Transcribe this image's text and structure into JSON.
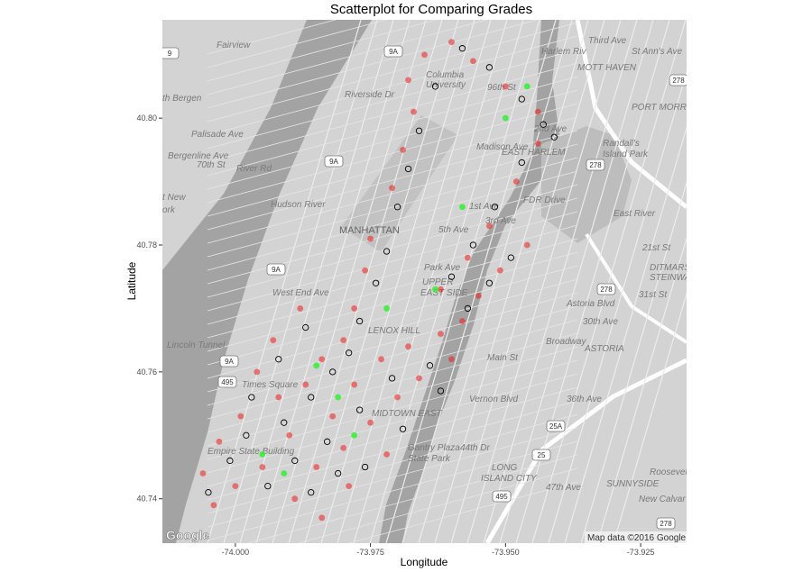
{
  "chart_data": {
    "type": "scatter",
    "title": "Scatterplot for Comparing Grades",
    "xlabel": "Longitude",
    "ylabel": "Latitude",
    "xlim": [
      -74.0135,
      -73.9165
    ],
    "ylim": [
      40.733,
      40.8155
    ],
    "x_ticks": [
      -74.0,
      -73.975,
      -73.95,
      -73.925
    ],
    "x_tick_labels": [
      "-74.000",
      "-73.975",
      "-73.950",
      "-73.925"
    ],
    "y_ticks": [
      40.74,
      40.76,
      40.78,
      40.8
    ],
    "y_tick_labels": [
      "40.74",
      "40.76",
      "40.78",
      "40.80"
    ],
    "grid": false,
    "legend": "none",
    "background": "Google roadmap (greyscale) of Manhattan",
    "series": [
      {
        "marker": "red-filled",
        "color": "#ee1c1c",
        "points": [
          [
            -73.992,
            40.756
          ],
          [
            -73.987,
            40.758
          ],
          [
            -73.984,
            40.762
          ],
          [
            -73.98,
            40.765
          ],
          [
            -73.978,
            40.77
          ],
          [
            -73.976,
            40.776
          ],
          [
            -73.975,
            40.781
          ],
          [
            -73.971,
            40.789
          ],
          [
            -73.969,
            40.795
          ],
          [
            -73.967,
            40.801
          ],
          [
            -73.962,
            40.773
          ],
          [
            -73.957,
            40.778
          ],
          [
            -73.953,
            40.783
          ],
          [
            -73.948,
            40.79
          ],
          [
            -73.944,
            40.796
          ],
          [
            -73.99,
            40.75
          ],
          [
            -73.995,
            40.745
          ],
          [
            -74.0,
            40.742
          ],
          [
            -74.004,
            40.739
          ],
          [
            -73.982,
            40.753
          ],
          [
            -73.978,
            40.758
          ],
          [
            -73.973,
            40.762
          ],
          [
            -73.968,
            40.764
          ],
          [
            -73.962,
            40.766
          ],
          [
            -73.985,
            40.745
          ],
          [
            -73.98,
            40.748
          ],
          [
            -73.975,
            40.752
          ],
          [
            -73.996,
            40.76
          ],
          [
            -73.993,
            40.765
          ],
          [
            -73.988,
            40.77
          ],
          [
            -73.958,
            40.768
          ],
          [
            -73.955,
            40.772
          ],
          [
            -73.951,
            40.776
          ],
          [
            -73.946,
            40.78
          ],
          [
            -73.968,
            40.806
          ],
          [
            -73.965,
            40.81
          ],
          [
            -73.96,
            40.812
          ],
          [
            -73.956,
            40.809
          ],
          [
            -73.95,
            40.805
          ],
          [
            -73.944,
            40.801
          ],
          [
            -74.006,
            40.744
          ],
          [
            -74.003,
            40.749
          ],
          [
            -73.999,
            40.753
          ],
          [
            -73.989,
            40.74
          ],
          [
            -73.984,
            40.737
          ],
          [
            -73.979,
            40.742
          ],
          [
            -73.972,
            40.747
          ],
          [
            -73.97,
            40.756
          ],
          [
            -73.966,
            40.759
          ],
          [
            -73.96,
            40.762
          ]
        ]
      },
      {
        "marker": "black-open-circle",
        "color": "#000000",
        "points": [
          [
            -73.991,
            40.752
          ],
          [
            -73.986,
            40.756
          ],
          [
            -73.982,
            40.76
          ],
          [
            -73.979,
            40.763
          ],
          [
            -73.977,
            40.768
          ],
          [
            -73.974,
            40.774
          ],
          [
            -73.972,
            40.779
          ],
          [
            -73.97,
            40.786
          ],
          [
            -73.968,
            40.792
          ],
          [
            -73.966,
            40.798
          ],
          [
            -73.96,
            40.775
          ],
          [
            -73.956,
            40.78
          ],
          [
            -73.952,
            40.786
          ],
          [
            -73.947,
            40.793
          ],
          [
            -73.943,
            40.799
          ],
          [
            -73.989,
            40.746
          ],
          [
            -73.994,
            40.742
          ],
          [
            -74.001,
            40.746
          ],
          [
            -73.983,
            40.749
          ],
          [
            -73.977,
            40.754
          ],
          [
            -73.971,
            40.759
          ],
          [
            -73.964,
            40.761
          ],
          [
            -73.986,
            40.741
          ],
          [
            -73.981,
            40.744
          ],
          [
            -73.997,
            40.756
          ],
          [
            -73.992,
            40.762
          ],
          [
            -73.987,
            40.767
          ],
          [
            -73.957,
            40.77
          ],
          [
            -73.953,
            40.774
          ],
          [
            -73.949,
            40.778
          ],
          [
            -73.963,
            40.805
          ],
          [
            -73.958,
            40.811
          ],
          [
            -73.953,
            40.808
          ],
          [
            -73.947,
            40.803
          ],
          [
            -73.941,
            40.797
          ],
          [
            -74.005,
            40.741
          ],
          [
            -73.998,
            40.75
          ],
          [
            -73.976,
            40.745
          ],
          [
            -73.969,
            40.751
          ],
          [
            -73.962,
            40.757
          ]
        ]
      },
      {
        "marker": "green-filled",
        "color": "#33ee33",
        "points": [
          [
            -73.985,
            40.761
          ],
          [
            -73.972,
            40.77
          ],
          [
            -73.958,
            40.786
          ],
          [
            -73.95,
            40.8
          ],
          [
            -73.978,
            40.75
          ],
          [
            -73.995,
            40.747
          ],
          [
            -73.963,
            40.773
          ],
          [
            -73.981,
            40.756
          ],
          [
            -73.946,
            40.805
          ],
          [
            -73.991,
            40.744
          ]
        ]
      }
    ]
  },
  "map": {
    "labels": [
      "Fairview",
      "th Bergen",
      "t New",
      "ork",
      "MANHATTAN",
      "Columbia",
      "University",
      "Randall's",
      "Island Park",
      "MOTT HAVEN",
      "PORT MORRIS",
      "EAST HARLEM",
      "Hudson River",
      "East River",
      "Harlem Riv",
      "Times Square",
      "Empire State Building",
      "Gantry Plaza",
      "State Park",
      "LONG",
      "ISLAND CITY",
      "SUNNYSIDE",
      "ASTORIA",
      "DITMARS",
      "STEINWAY",
      "MIDTOWN EAST",
      "LENOX HILL",
      "UPPER",
      "EAST SIDE",
      "FDR Drive",
      "Broadway",
      "Astoria Blvd",
      "30th Ave",
      "36th Ave",
      "44th Dr",
      "47th Ave",
      "Roosevelt",
      "New Calvar",
      "Lincoln Tunnel",
      "Vernon Blvd",
      "Main St",
      "Riverside Dr",
      "West End Ave",
      "5th Ave",
      "Park Ave",
      "3rd Ave",
      "2nd Ave",
      "1st Ave",
      "River Rd",
      "Palisade Ave",
      "Bergenline Ave",
      "70th St",
      "Third Ave",
      "St Ann's Ave",
      "21st St",
      "31st St",
      "Madison Ave",
      "96th St"
    ],
    "shields": [
      "9",
      "9A",
      "9A",
      "9A",
      "9A",
      "278",
      "278",
      "278",
      "278",
      "495",
      "495",
      "25A",
      "25"
    ],
    "attribution": "Map data ©2016 Google",
    "logo": "Google"
  }
}
